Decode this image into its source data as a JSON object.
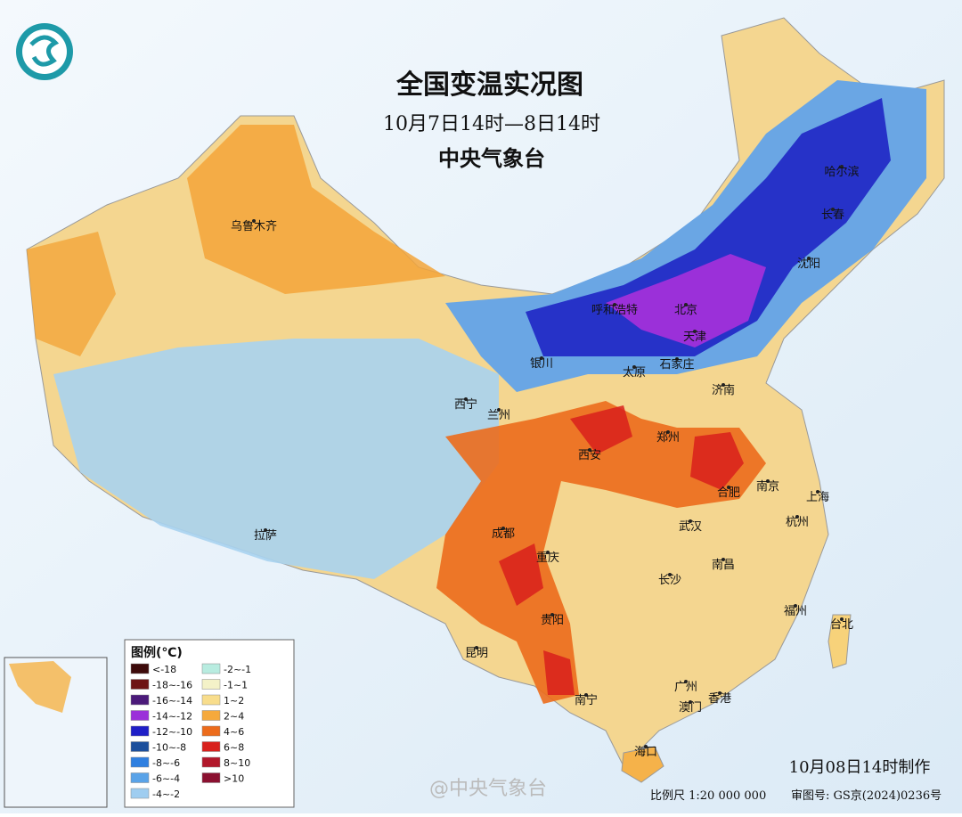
{
  "header": {
    "title": "全国变温实况图",
    "subtitle": "10月7日14时—8日14时",
    "org": "中央气象台"
  },
  "cities": [
    {
      "label": "乌鲁木齐"
    },
    {
      "label": "哈尔滨"
    },
    {
      "label": "长春"
    },
    {
      "label": "沈阳"
    },
    {
      "label": "呼和浩特"
    },
    {
      "label": "北京"
    },
    {
      "label": "天津"
    },
    {
      "label": "石家庄"
    },
    {
      "label": "太原"
    },
    {
      "label": "银川"
    },
    {
      "label": "济南"
    },
    {
      "label": "西宁"
    },
    {
      "label": "兰州"
    },
    {
      "label": "郑州"
    },
    {
      "label": "西安"
    },
    {
      "label": "合肥"
    },
    {
      "label": "南京"
    },
    {
      "label": "上海"
    },
    {
      "label": "杭州"
    },
    {
      "label": "武汉"
    },
    {
      "label": "拉萨"
    },
    {
      "label": "成都"
    },
    {
      "label": "重庆"
    },
    {
      "label": "长沙"
    },
    {
      "label": "南昌"
    },
    {
      "label": "福州"
    },
    {
      "label": "台北"
    },
    {
      "label": "贵阳"
    },
    {
      "label": "昆明"
    },
    {
      "label": "南宁"
    },
    {
      "label": "广州"
    },
    {
      "label": "香港"
    },
    {
      "label": "澳门"
    },
    {
      "label": "海口"
    }
  ],
  "legend": {
    "title": "图例(℃)",
    "items": [
      {
        "label": "<-18",
        "color": "#3d0a0a"
      },
      {
        "label": "-18~-16",
        "color": "#6e1414"
      },
      {
        "label": "-16~-14",
        "color": "#4b1a7a"
      },
      {
        "label": "-14~-12",
        "color": "#9b30d9"
      },
      {
        "label": "-12~-10",
        "color": "#1f1fc7"
      },
      {
        "label": "-10~-8",
        "color": "#1c4f9c"
      },
      {
        "label": "-8~-6",
        "color": "#2f7fe0"
      },
      {
        "label": "-6~-4",
        "color": "#5aa3e8"
      },
      {
        "label": "-4~-2",
        "color": "#9fcdf0"
      },
      {
        "label": "-2~-1",
        "color": "#b8ece0"
      },
      {
        "label": "-1~1",
        "color": "#f4f2c8"
      },
      {
        "label": "1~2",
        "color": "#f8dd8c"
      },
      {
        "label": "2~4",
        "color": "#f5a93c"
      },
      {
        "label": "4~6",
        "color": "#ec6c1c"
      },
      {
        "label": "6~8",
        "color": "#d8201c"
      },
      {
        "label": "8~10",
        "color": "#b2182b"
      },
      {
        "label": ">10",
        "color": "#8b1030"
      }
    ]
  },
  "footer": {
    "made": "10月08日14时制作",
    "scale": "比例尺 1:20 000 000",
    "approval": "审图号: GS京(2024)0236号",
    "watermark": "@中央气象台"
  }
}
